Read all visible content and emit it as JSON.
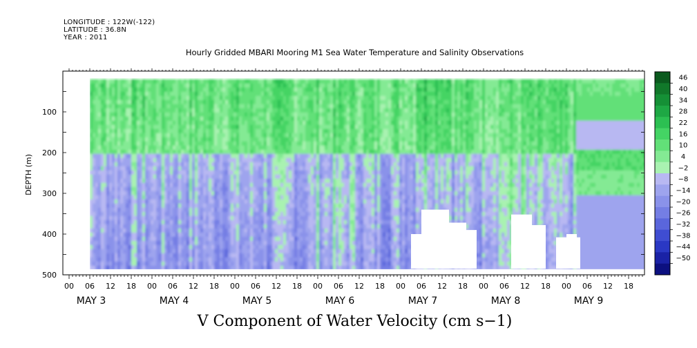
{
  "header": {
    "longitude": "LONGITUDE : 122W(-122)",
    "latitude": "LATITUDE : 36.8N",
    "year": "YEAR : 2011"
  },
  "chart_data": {
    "type": "heatmap",
    "title": "Hourly Gridded MBARI Mooring M1 Sea Water Temperature and Salinity Observations",
    "xlabel": "V Component of Water Velocity (cm s−1)",
    "ylabel": "DEPTH (m)",
    "ylim": [
      500,
      0
    ],
    "y_ticks": [
      "100",
      "200",
      "300",
      "400",
      "500"
    ],
    "hour_ticks": [
      "00",
      "06",
      "12",
      "18"
    ],
    "day_labels": [
      "MAY  3",
      "MAY  4",
      "MAY  5",
      "MAY  6",
      "MAY  7",
      "MAY  8",
      "MAY  9"
    ],
    "colorbar_levels": [
      "46",
      "40",
      "34",
      "28",
      "22",
      "16",
      "10",
      "4",
      "−2",
      "−8",
      "−14",
      "−20",
      "−26",
      "−32",
      "−38",
      "−44",
      "−50"
    ],
    "colorbar_colors": [
      "#0b5a1e",
      "#11782a",
      "#159036",
      "#1ea844",
      "#2cc052",
      "#44d464",
      "#62e078",
      "#84ea94",
      "#a9f2b1",
      "#b8b8f2",
      "#9ea4ee",
      "#8a92ea",
      "#747ee4",
      "#5a66dc",
      "#3f4dd2",
      "#2a38c4",
      "#1a22a6",
      "#0c1080"
    ],
    "data_coverage": "depth 20-485 m, May 3 06:00 to May 9 18:00, gaps at May 7 near 04-14 h below ~340 m"
  }
}
